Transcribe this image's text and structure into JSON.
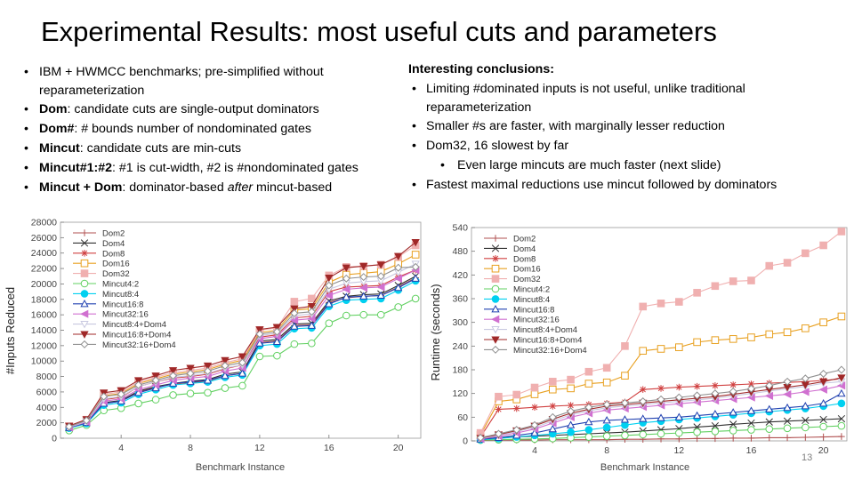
{
  "slide": {
    "title": "Experimental Results: most useful cuts and parameters",
    "page_number": "13"
  },
  "left_bullets": [
    {
      "bold": "",
      "text": "IBM + HWMCC benchmarks; pre-simplified without",
      "cont": "reparameterization",
      "italic": "",
      "tail": ""
    },
    {
      "bold": "Dom",
      "text": ": candidate cuts are single-output dominators",
      "cont": "",
      "italic": "",
      "tail": ""
    },
    {
      "bold": "Dom#",
      "text": ": # bounds number of nondominated gates",
      "cont": "",
      "italic": "",
      "tail": ""
    },
    {
      "bold": "Mincut",
      "text": ": candidate cuts are min-cuts",
      "cont": "",
      "italic": "",
      "tail": ""
    },
    {
      "bold": "Mincut#1:#2",
      "text": ": #1 is cut-width, #2 is #nondominated gates",
      "cont": "",
      "italic": "",
      "tail": ""
    },
    {
      "bold": "Mincut + Dom",
      "text": ": dominator-based ",
      "cont": "",
      "italic": "after",
      "tail": " mincut-based"
    }
  ],
  "conclusions": {
    "heading": "Interesting conclusions:",
    "items": [
      {
        "text": "Limiting #dominated inputs is not useful, unlike traditional",
        "cont": "reparameterization",
        "sub": false
      },
      {
        "text": "Smaller #s are faster, with marginally lesser reduction",
        "cont": "",
        "sub": false
      },
      {
        "text": "Dom32, 16 slowest by far",
        "cont": "",
        "sub": false
      },
      {
        "text": "Even large mincuts are much faster (next slide)",
        "cont": "",
        "sub": true
      },
      {
        "text": "Fastest maximal reductions use mincut followed by dominators",
        "cont": "",
        "sub": false
      }
    ]
  },
  "chart_data": [
    {
      "type": "line",
      "title": "",
      "xlabel": "Benchmark Instance",
      "ylabel": "#Inputs Reduced",
      "xlim": [
        0.5,
        21.3
      ],
      "ylim": [
        0,
        28000
      ],
      "xticks": [
        4,
        8,
        12,
        16,
        20
      ],
      "yticks": [
        0,
        2000,
        4000,
        6000,
        8000,
        10000,
        12000,
        14000,
        16000,
        18000,
        20000,
        22000,
        24000,
        26000,
        28000
      ],
      "legend_position": "top-left",
      "x": [
        1,
        2,
        3,
        4,
        5,
        6,
        7,
        8,
        9,
        10,
        11,
        12,
        13,
        14,
        15,
        16,
        17,
        18,
        19,
        20,
        21
      ],
      "series": [
        {
          "name": "Dom2",
          "color": "#b05050",
          "marker": "plus",
          "values": [
            1400,
            2000,
            4500,
            4800,
            6000,
            6600,
            7000,
            7200,
            7400,
            8100,
            8400,
            12400,
            12600,
            14600,
            14700,
            17600,
            18200,
            18400,
            18500,
            19600,
            20800
          ]
        },
        {
          "name": "Dom4",
          "color": "#303030",
          "marker": "x",
          "values": [
            1400,
            2000,
            4600,
            4900,
            6100,
            6700,
            7100,
            7400,
            7600,
            8300,
            8600,
            12600,
            12800,
            14800,
            14900,
            17800,
            18400,
            18600,
            18700,
            19800,
            21000
          ]
        },
        {
          "name": "Dom8",
          "color": "#d04040",
          "marker": "star",
          "values": [
            1450,
            2100,
            5000,
            5300,
            6700,
            7300,
            7800,
            8000,
            8300,
            9000,
            9500,
            13100,
            13400,
            15600,
            15800,
            19000,
            19600,
            19700,
            19800,
            20900,
            21800
          ]
        },
        {
          "name": "Dom16",
          "color": "#e8a020",
          "marker": "square-open",
          "values": [
            1500,
            2300,
            5500,
            5800,
            7100,
            7700,
            8300,
            8600,
            8900,
            9600,
            10100,
            13700,
            14000,
            16600,
            16800,
            20200,
            21200,
            21400,
            21600,
            22600,
            23800
          ]
        },
        {
          "name": "Dom32",
          "color": "#f0b0b0",
          "marker": "square",
          "values": [
            1550,
            2400,
            5700,
            6000,
            7300,
            7900,
            8500,
            8800,
            9100,
            9800,
            10300,
            14000,
            14300,
            17700,
            18100,
            21100,
            22200,
            22300,
            22500,
            23500,
            25000
          ]
        },
        {
          "name": "Mincut4:2",
          "color": "#60d060",
          "marker": "circle-open",
          "values": [
            1000,
            1700,
            3600,
            3900,
            4500,
            5000,
            5600,
            5800,
            5900,
            6500,
            6800,
            10600,
            10700,
            12200,
            12300,
            14900,
            15900,
            16000,
            16000,
            17000,
            18100
          ]
        },
        {
          "name": "Mincut8:4",
          "color": "#00d0f0",
          "marker": "circle",
          "values": [
            1300,
            1900,
            4300,
            4600,
            5700,
            6300,
            6900,
            7100,
            7300,
            7900,
            8200,
            12000,
            12200,
            14200,
            14300,
            17100,
            17900,
            18000,
            18100,
            19200,
            20400
          ]
        },
        {
          "name": "Mincut16:8",
          "color": "#2040b0",
          "marker": "triangle-open",
          "values": [
            1350,
            2000,
            4500,
            4800,
            5900,
            6500,
            7100,
            7300,
            7500,
            8100,
            8400,
            12300,
            12500,
            14500,
            14600,
            17400,
            18300,
            18400,
            18500,
            19500,
            20700
          ]
        },
        {
          "name": "Mincut32:16",
          "color": "#d070d0",
          "marker": "triangle-left",
          "values": [
            1400,
            2100,
            4800,
            5100,
            6300,
            6900,
            7500,
            7800,
            8000,
            8700,
            9100,
            12900,
            13200,
            15300,
            15500,
            18500,
            19300,
            19500,
            19600,
            20700,
            21800
          ]
        },
        {
          "name": "Mincut8:4+Dom4",
          "color": "#c8c8e0",
          "marker": "triangle-down-open",
          "values": [
            1450,
            2200,
            5100,
            5400,
            6700,
            7300,
            7900,
            8100,
            8400,
            9100,
            9500,
            13300,
            13600,
            15900,
            16100,
            19300,
            20100,
            20300,
            20400,
            21500,
            22600
          ]
        },
        {
          "name": "Mincut16:8+Dom4",
          "color": "#a02828",
          "marker": "triangle-down",
          "values": [
            1600,
            2450,
            5900,
            6200,
            7500,
            8100,
            8800,
            9100,
            9400,
            10100,
            10600,
            14100,
            14400,
            16800,
            17100,
            20800,
            22100,
            22300,
            22500,
            23600,
            25400
          ]
        },
        {
          "name": "Mincut32:16+Dom4",
          "color": "#909090",
          "marker": "diamond-open",
          "values": [
            1500,
            2300,
            5400,
            5700,
            6900,
            7500,
            8100,
            8400,
            8700,
            9400,
            9800,
            13500,
            13800,
            16200,
            16400,
            19800,
            20700,
            20900,
            21000,
            22100,
            22200
          ]
        }
      ]
    },
    {
      "type": "line",
      "title": "",
      "xlabel": "Benchmark Instance",
      "ylabel": "Runtime (seconds)",
      "xlim": [
        0.5,
        21.3
      ],
      "ylim": [
        0,
        540
      ],
      "xticks": [
        4,
        8,
        12,
        16,
        20
      ],
      "yticks": [
        0,
        60,
        120,
        180,
        240,
        300,
        360,
        420,
        480,
        540
      ],
      "legend_position": "top-left",
      "x": [
        1,
        2,
        3,
        4,
        5,
        6,
        7,
        8,
        9,
        10,
        11,
        12,
        13,
        14,
        15,
        16,
        17,
        18,
        19,
        20,
        21
      ],
      "series": [
        {
          "name": "Dom2",
          "color": "#b05050",
          "marker": "plus",
          "values": [
            1,
            2,
            2,
            2,
            3,
            3,
            3,
            3,
            4,
            4,
            5,
            5,
            6,
            6,
            7,
            7,
            8,
            8,
            9,
            10,
            11
          ]
        },
        {
          "name": "Dom4",
          "color": "#303030",
          "marker": "x",
          "values": [
            5,
            8,
            10,
            12,
            14,
            16,
            18,
            20,
            22,
            25,
            28,
            31,
            35,
            38,
            42,
            45,
            48,
            50,
            52,
            54,
            56
          ]
        },
        {
          "name": "Dom8",
          "color": "#d04040",
          "marker": "star",
          "values": [
            10,
            80,
            82,
            85,
            88,
            90,
            92,
            95,
            98,
            130,
            133,
            136,
            138,
            140,
            142,
            144,
            146,
            148,
            150,
            153,
            157
          ]
        },
        {
          "name": "Dom16",
          "color": "#e8a020",
          "marker": "square-open",
          "values": [
            15,
            100,
            105,
            118,
            130,
            133,
            145,
            148,
            165,
            228,
            233,
            237,
            250,
            255,
            258,
            262,
            270,
            275,
            285,
            300,
            315
          ]
        },
        {
          "name": "Dom32",
          "color": "#f0b0b0",
          "marker": "square",
          "values": [
            20,
            112,
            117,
            135,
            150,
            155,
            175,
            185,
            240,
            340,
            348,
            352,
            375,
            392,
            404,
            406,
            443,
            451,
            475,
            495,
            530
          ]
        },
        {
          "name": "Mincut4:2",
          "color": "#60d060",
          "marker": "circle-open",
          "values": [
            2,
            3,
            4,
            5,
            6,
            8,
            10,
            12,
            14,
            16,
            18,
            20,
            22,
            24,
            26,
            28,
            30,
            32,
            34,
            36,
            38
          ]
        },
        {
          "name": "Mincut8:4",
          "color": "#00d0f0",
          "marker": "circle",
          "values": [
            3,
            6,
            10,
            14,
            18,
            22,
            28,
            34,
            40,
            46,
            50,
            54,
            58,
            62,
            66,
            70,
            74,
            78,
            82,
            88,
            95
          ]
        },
        {
          "name": "Mincut16:8",
          "color": "#2040b0",
          "marker": "triangle-open",
          "values": [
            4,
            8,
            14,
            20,
            30,
            40,
            48,
            52,
            54,
            56,
            58,
            60,
            64,
            68,
            72,
            76,
            80,
            84,
            88,
            95,
            120
          ]
        },
        {
          "name": "Mincut32:16",
          "color": "#d070d0",
          "marker": "triangle-left",
          "values": [
            5,
            12,
            20,
            30,
            45,
            60,
            70,
            78,
            82,
            86,
            90,
            94,
            98,
            102,
            106,
            110,
            114,
            118,
            124,
            130,
            140
          ]
        },
        {
          "name": "Mincut8:4+Dom4",
          "color": "#c8c8e0",
          "marker": "triangle-down-open",
          "values": [
            6,
            14,
            24,
            34,
            50,
            66,
            76,
            84,
            88,
            92,
            96,
            100,
            104,
            108,
            114,
            120,
            126,
            132,
            138,
            146,
            150
          ]
        },
        {
          "name": "Mincut16:8+Dom4",
          "color": "#a02828",
          "marker": "triangle-down",
          "values": [
            7,
            16,
            26,
            38,
            55,
            70,
            80,
            88,
            92,
            96,
            100,
            104,
            108,
            112,
            118,
            124,
            130,
            136,
            142,
            150,
            160
          ]
        },
        {
          "name": "Mincut32:16+Dom4",
          "color": "#909090",
          "marker": "diamond-open",
          "values": [
            8,
            18,
            28,
            40,
            60,
            75,
            85,
            92,
            96,
            100,
            105,
            110,
            115,
            120,
            125,
            132,
            140,
            150,
            158,
            170,
            180
          ]
        }
      ]
    }
  ]
}
